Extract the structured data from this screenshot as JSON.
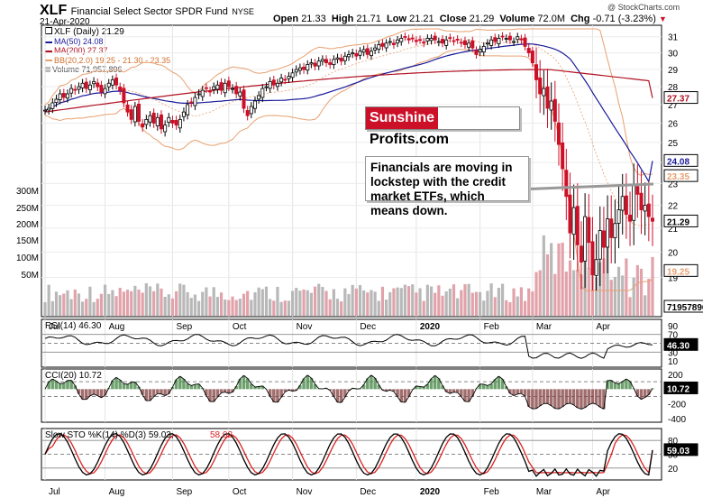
{
  "header": {
    "symbol": "XLF",
    "fund_name": "Financial Select Sector SPDR Fund",
    "exchange": "NYSE",
    "date": "21-Apr-2020",
    "open_label": "Open",
    "open": "21.33",
    "high_label": "High",
    "high": "21.71",
    "low_label": "Low",
    "low": "21.21",
    "close_label": "Close",
    "close": "21.29",
    "volume_label": "Volume",
    "volume": "72.0M",
    "chg_label": "Chg",
    "chg": "-0.71 (-3.23%)",
    "chg_arrow": "▼",
    "copyright": "@ StockCharts.com"
  },
  "legend": {
    "price": "XLF (Daily) 21.29",
    "ma50": "MA(50) 24.08",
    "ma200": "MA(200) 27.37",
    "bb": "BB(20,2.0) 19.25 - 21.30 - 23.35",
    "volume": "Volume 71,957,896"
  },
  "banner": {
    "part1": "Sunshine",
    "part2": "Profits.com"
  },
  "annotation": "Financials are moving in lockstep with the credit market ETFs, which means down.",
  "colors": {
    "ma50": "#1a1a9a",
    "ma200": "#b01020",
    "bb": "#e8a070",
    "up": "#000000",
    "down": "#cc1028",
    "vol_up": "#b8b8b8",
    "vol_down": "#e2a2aa",
    "rsi_line": "#000000",
    "cci_fill": "#4a8a4a",
    "cci_neg_fill": "#8a4a4a",
    "sto_k": "#000000",
    "sto_d": "#dd2222",
    "tag_current": "#000000",
    "tag_ma50": "#1a1a9a",
    "tag_ma200": "#b01020",
    "tag_bb": "#e8a070"
  },
  "chart_data": {
    "type": "candlestick",
    "symbol": "XLF",
    "title": "XLF Financial Select Sector SPDR Fund NYSE",
    "price_axis": {
      "min": 18.5,
      "max": 31.5,
      "ticks": [
        19,
        20,
        21,
        22,
        23,
        24,
        25,
        26,
        27,
        28,
        29,
        30,
        31
      ],
      "scale": "log"
    },
    "volume_axis_ticks": [
      "300M",
      "250M",
      "200M",
      "150M",
      "100M",
      "50M"
    ],
    "x_month_labels": [
      "Jul",
      "Aug",
      "Sep",
      "Oct",
      "Nov",
      "Dec",
      "2020",
      "Feb",
      "Mar",
      "Apr"
    ],
    "right_tags": {
      "close": "21.29",
      "ma50": "24.08",
      "ma200": "27.37",
      "bb_upper": "23.35",
      "bb_lower": "19.25",
      "volume": "71957896"
    },
    "close_series": [
      26.7,
      26.8,
      27.1,
      27.3,
      27.6,
      27.4,
      27.6,
      27.9,
      27.8,
      28.0,
      28.2,
      27.9,
      28.1,
      28.3,
      28.0,
      27.7,
      27.9,
      28.2,
      28.4,
      28.1,
      27.8,
      27.1,
      26.6,
      26.2,
      26.9,
      26.1,
      25.8,
      26.2,
      26.4,
      26.0,
      26.3,
      25.7,
      25.9,
      26.3,
      26.0,
      25.9,
      26.2,
      26.6,
      27.0,
      27.1,
      27.4,
      27.6,
      27.8,
      27.9,
      27.7,
      28.0,
      28.1,
      27.8,
      28.2,
      28.0,
      27.9,
      27.6,
      27.7,
      26.8,
      26.4,
      26.9,
      27.2,
      27.5,
      27.9,
      28.0,
      28.3,
      28.1,
      28.2,
      28.5,
      28.4,
      28.6,
      28.8,
      29.0,
      29.1,
      29.0,
      29.3,
      29.4,
      29.2,
      29.5,
      29.6,
      29.4,
      29.3,
      29.6,
      29.7,
      29.5,
      29.8,
      29.9,
      30.0,
      29.8,
      30.1,
      30.2,
      29.9,
      30.1,
      30.3,
      30.5,
      30.4,
      30.6,
      30.7,
      30.5,
      30.8,
      30.9,
      31.0,
      30.8,
      30.9,
      30.7,
      30.8,
      30.6,
      30.9,
      30.9,
      30.8,
      30.7,
      30.6,
      30.8,
      30.9,
      30.7,
      30.8,
      30.6,
      30.5,
      30.6,
      30.3,
      29.9,
      30.2,
      30.4,
      30.6,
      30.8,
      30.7,
      30.9,
      31.0,
      30.9,
      30.8,
      30.7,
      31.0,
      30.8,
      30.4,
      30.0,
      29.4,
      28.4,
      27.6,
      27.9,
      26.8,
      27.2,
      26.1,
      24.9,
      23.7,
      22.4,
      20.8,
      21.9,
      20.3,
      19.6,
      21.5,
      20.4,
      19.1,
      19.7,
      20.9,
      20.2,
      21.4,
      20.6,
      21.2,
      21.8,
      22.4,
      21.6,
      21.3,
      22.9,
      22.5,
      21.8,
      22.0,
      21.5,
      21.3
    ],
    "ma50": {
      "value": 24.08
    },
    "ma200": {
      "value": 27.37
    },
    "bb": {
      "lower": 19.25,
      "middle": 21.3,
      "upper": 23.35
    },
    "volume": {
      "last": 71957896
    },
    "indicators": [
      {
        "name": "RSI(14)",
        "value": 46.3,
        "label": "RSI(14) 46.30",
        "axis": [
          10,
          30,
          50,
          70,
          90
        ]
      },
      {
        "name": "CCI(20)",
        "value": 10.72,
        "label": "CCI(20) 10.72",
        "axis": [
          200,
          0,
          -200,
          -400
        ]
      },
      {
        "name": "Slow STO %K(14) %D(3)",
        "k": 59.03,
        "d": 58.02,
        "label_k": "Slow STO %K(14) %D(3) 59.03,",
        "label_d": "58.02",
        "axis": [
          20,
          50,
          80
        ]
      }
    ]
  }
}
